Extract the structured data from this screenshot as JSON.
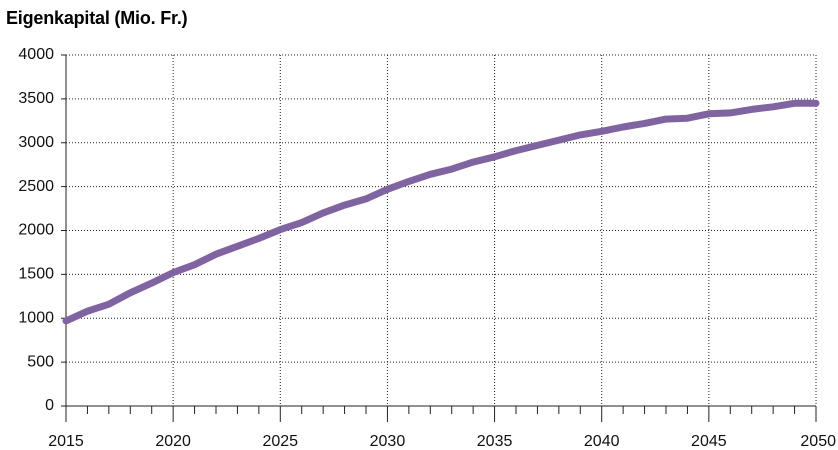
{
  "chart_data": {
    "type": "line",
    "title": "Eigenkapital (Mio. Fr.)",
    "xlabel": "",
    "ylabel": "",
    "xlim": [
      2015,
      2050
    ],
    "ylim": [
      0,
      4000
    ],
    "x_ticks": [
      2015,
      2020,
      2025,
      2030,
      2035,
      2040,
      2045,
      2050
    ],
    "y_ticks": [
      0,
      500,
      1000,
      1500,
      2000,
      2500,
      3000,
      3500,
      4000
    ],
    "grid": true,
    "series": [
      {
        "color": "#8064a2",
        "x": [
          2015,
          2016,
          2017,
          2018,
          2019,
          2020,
          2021,
          2022,
          2023,
          2024,
          2025,
          2026,
          2027,
          2028,
          2029,
          2030,
          2031,
          2032,
          2033,
          2034,
          2035,
          2036,
          2037,
          2038,
          2039,
          2040,
          2041,
          2042,
          2043,
          2044,
          2045,
          2046,
          2047,
          2048,
          2049,
          2050
        ],
        "values": [
          970,
          1080,
          1160,
          1290,
          1400,
          1520,
          1610,
          1730,
          1820,
          1910,
          2010,
          2090,
          2200,
          2290,
          2360,
          2470,
          2560,
          2640,
          2700,
          2780,
          2840,
          2910,
          2970,
          3030,
          3090,
          3130,
          3180,
          3220,
          3270,
          3280,
          3330,
          3340,
          3380,
          3410,
          3450,
          3450
        ]
      }
    ]
  }
}
